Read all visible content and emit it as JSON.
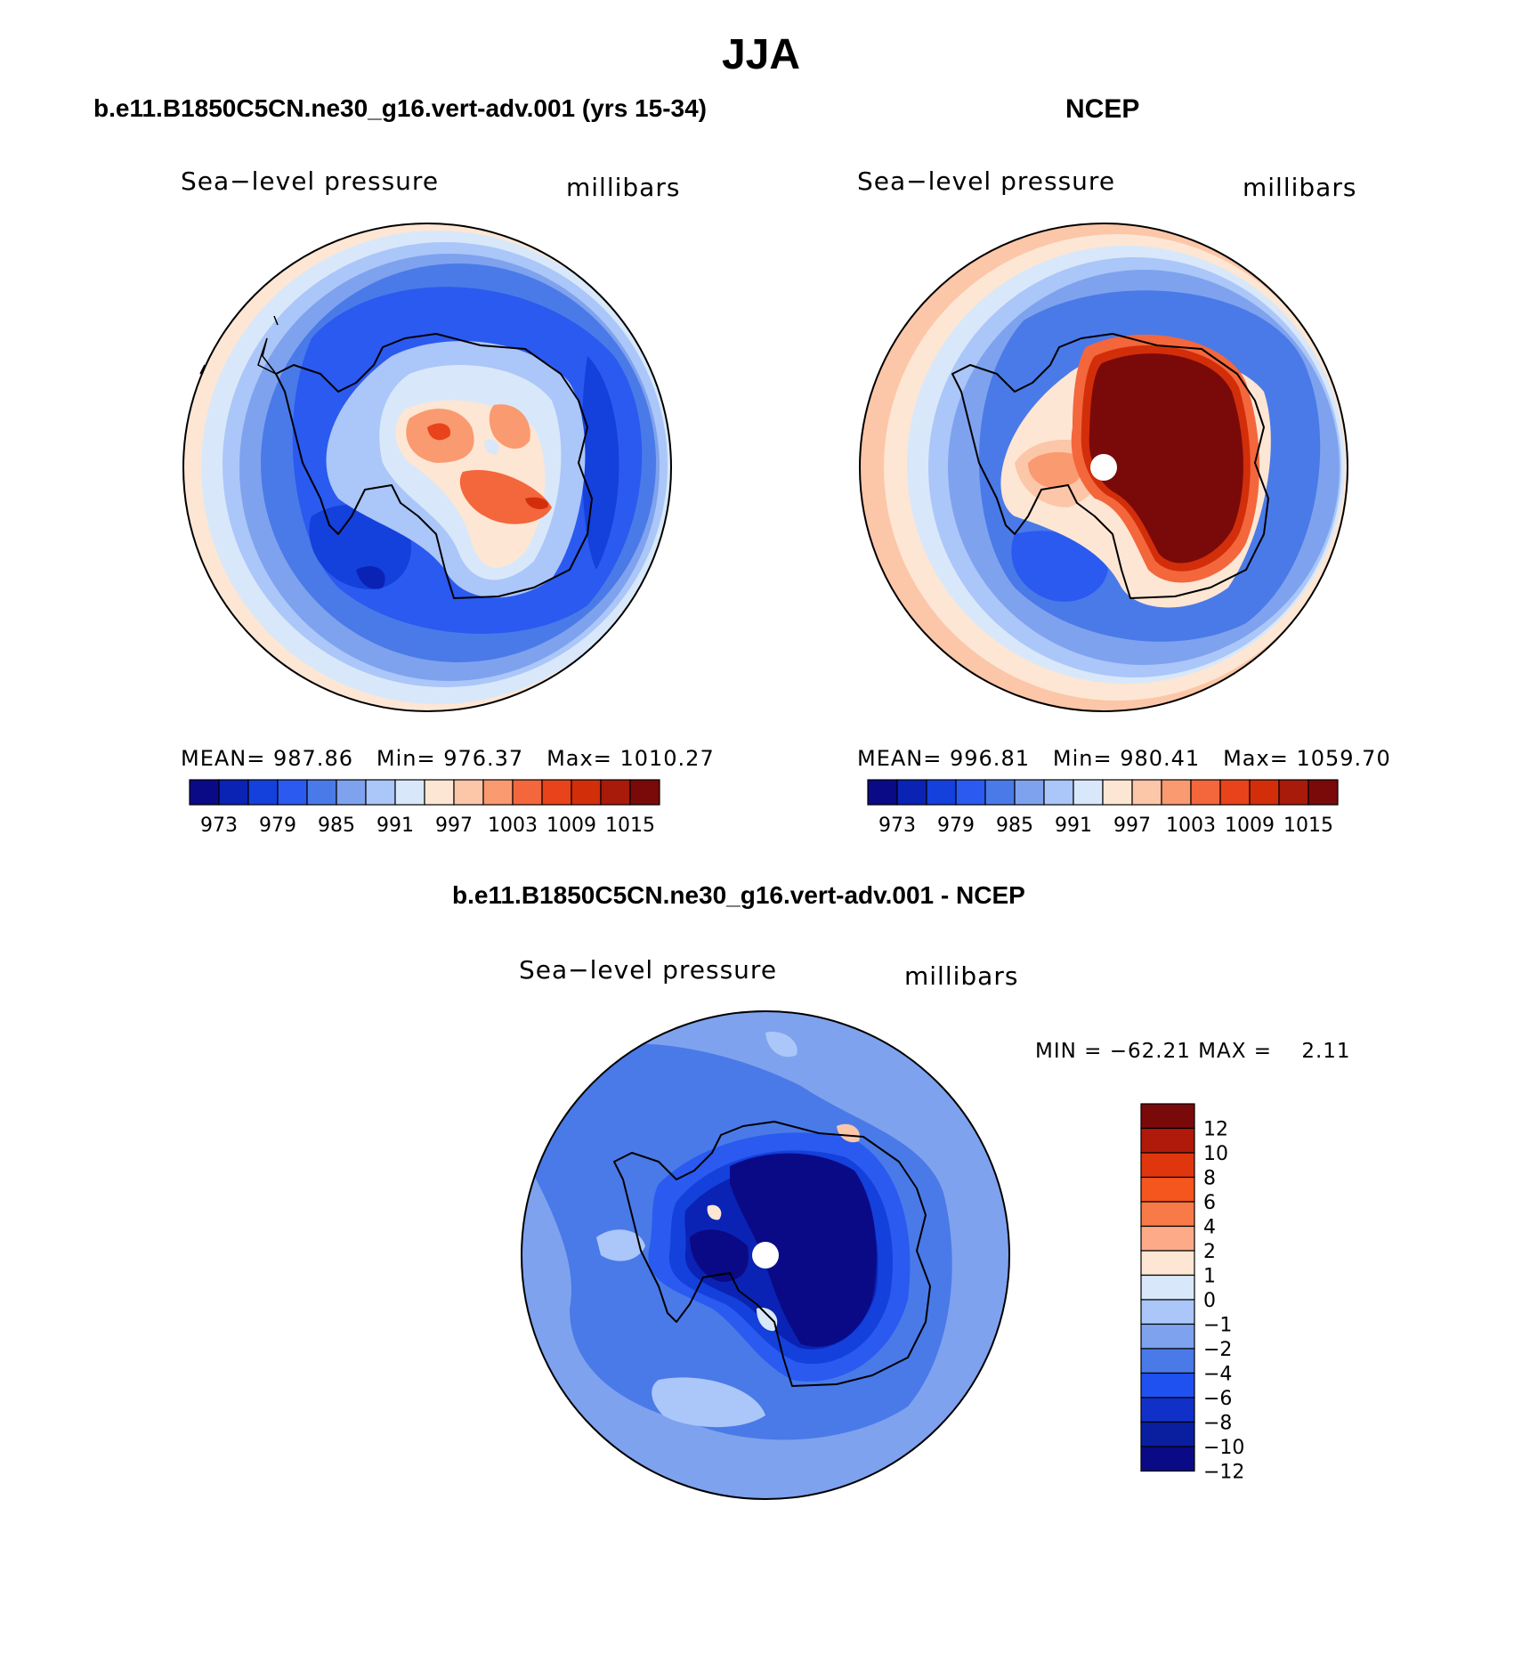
{
  "page_title": "JJA",
  "panels": [
    {
      "id": "model",
      "title": "b.e11.B1850C5CN.ne30_g16.vert-adv.001 (yrs 15-34)",
      "left_label": "Sea−level pressure",
      "right_label": "millibars",
      "stats": {
        "mean_label": "MEAN=",
        "mean": "987.86",
        "min_label": "Min=",
        "min": "976.37",
        "max_label": "Max=",
        "max": "1010.27"
      }
    },
    {
      "id": "ncep",
      "title": "NCEP",
      "left_label": "Sea−level pressure",
      "right_label": "millibars",
      "stats": {
        "mean_label": "MEAN=",
        "mean": "996.81",
        "min_label": "Min=",
        "min": "980.41",
        "max_label": "Max=",
        "max": "1059.70"
      }
    },
    {
      "id": "difference",
      "title": "b.e11.B1850C5CN.ne30_g16.vert-adv.001 - NCEP",
      "left_label": "Sea−level pressure",
      "right_label": "millibars",
      "minmax_text": "MIN = −62.21 MAX =    2.11"
    }
  ],
  "abs_colorbar": {
    "colors": [
      "#0a0a87",
      "#0a23b4",
      "#1440dc",
      "#2a5af0",
      "#4a7ae8",
      "#7ea2ee",
      "#abc6f8",
      "#d8e8fa",
      "#fde6d4",
      "#fcc6a8",
      "#fa9a70",
      "#f4663c",
      "#e8431a",
      "#d22e0a",
      "#a81a0a",
      "#7a0a0a"
    ],
    "tick_labels": [
      "973",
      "979",
      "985",
      "991",
      "997",
      "1003",
      "1009",
      "1015"
    ]
  },
  "diff_colorbar": {
    "colors_top_to_bottom": [
      "#7a0a0a",
      "#b01a0a",
      "#e0360e",
      "#f4561e",
      "#f77a48",
      "#fcaa88",
      "#fde6d4",
      "#d8e8fa",
      "#abc6f8",
      "#7ea2ee",
      "#4a7ae8",
      "#1f50f0",
      "#1030c8",
      "#0a1ea0",
      "#0a0a87"
    ],
    "labels": [
      "12",
      "10",
      "8",
      "6",
      "4",
      "2",
      "1",
      "0",
      "−1",
      "−2",
      "−4",
      "−6",
      "−8",
      "−10",
      "−12"
    ]
  }
}
